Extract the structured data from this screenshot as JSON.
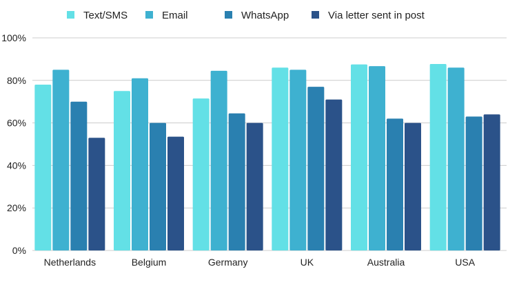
{
  "chart_data": {
    "type": "bar",
    "title": "",
    "xlabel": "",
    "ylabel": "",
    "ylim": [
      0,
      100
    ],
    "yticks": [
      "0%",
      "20%",
      "40%",
      "60%",
      "80%",
      "100%"
    ],
    "ytick_values": [
      0,
      20,
      40,
      60,
      80,
      100
    ],
    "grid": true,
    "legend_position": "top-center",
    "categories": [
      "Netherlands",
      "Belgium",
      "Germany",
      "UK",
      "Australia",
      "USA"
    ],
    "series": [
      {
        "name": "Text/SMS",
        "color": "#63E0E6",
        "values": [
          78,
          75,
          71.5,
          86,
          87.5,
          87.7
        ]
      },
      {
        "name": "Email",
        "color": "#3EB1D0",
        "values": [
          85,
          81,
          84.5,
          85,
          86.7,
          86
        ]
      },
      {
        "name": "WhatsApp",
        "color": "#2A80B0",
        "values": [
          70,
          60,
          64.5,
          77,
          62,
          63
        ]
      },
      {
        "name": "Via letter sent in post",
        "color": "#2B5289",
        "values": [
          53,
          53.5,
          60,
          71,
          60,
          64
        ]
      }
    ]
  }
}
